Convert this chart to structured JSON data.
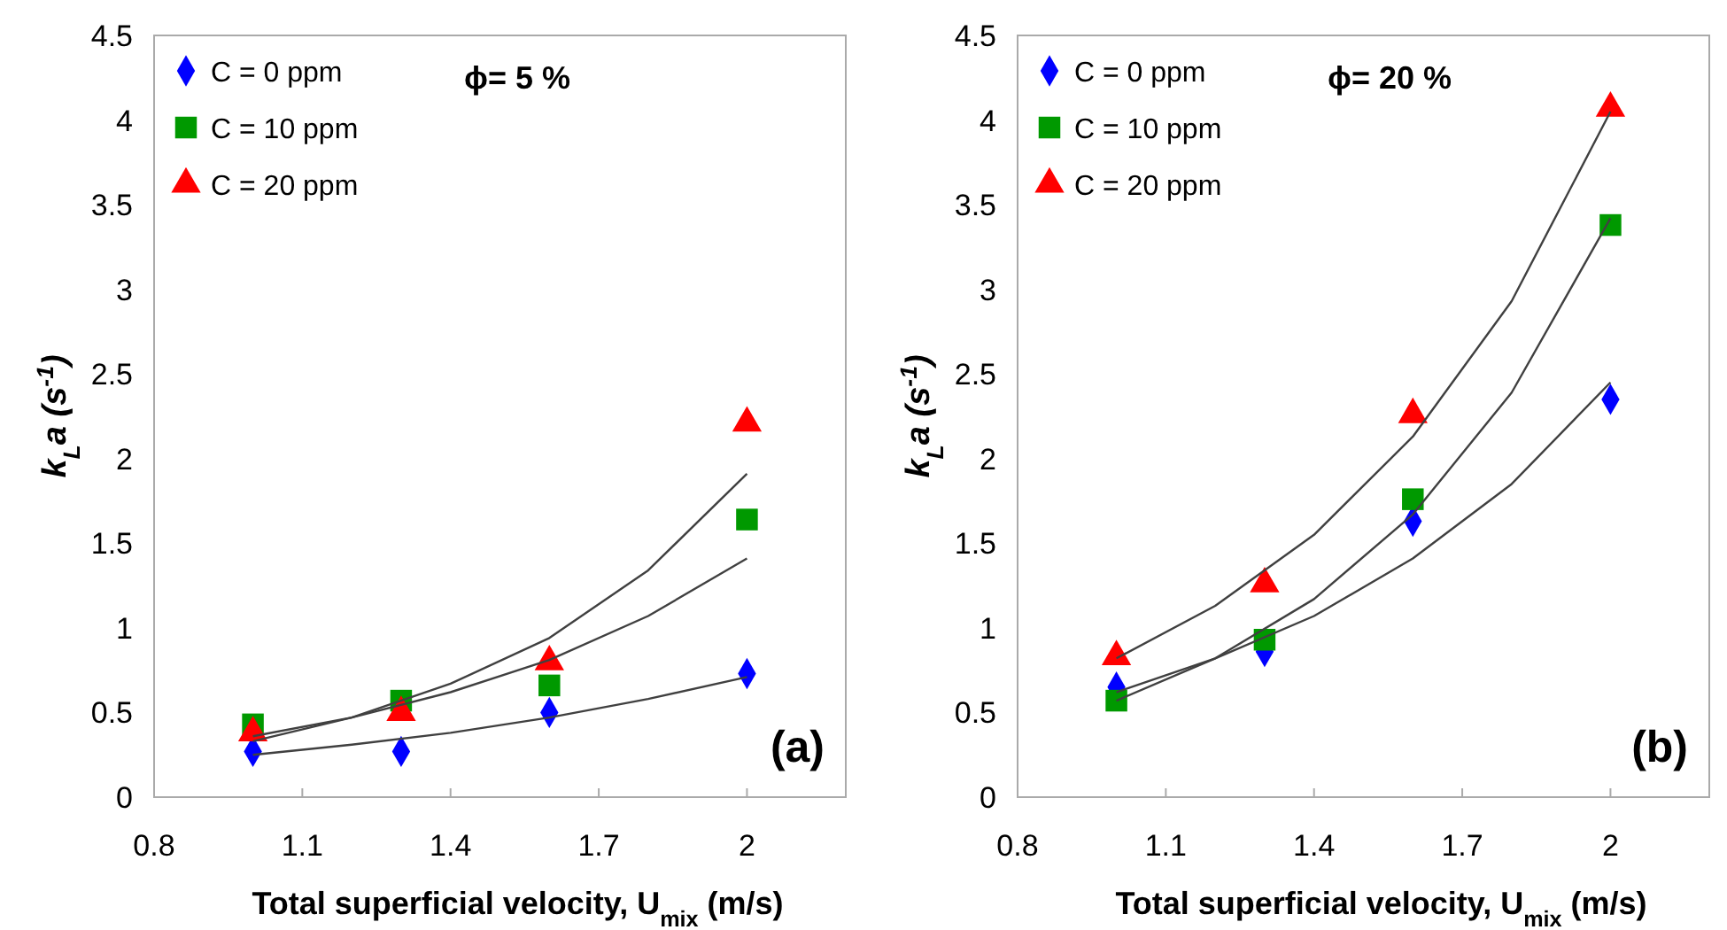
{
  "chart_data": [
    {
      "type": "scatter",
      "xlabel": "Total superficial velocity, U$_{mix}$ (m/s)",
      "ylabel": "k$_{L}$a (s$^{-1}$)",
      "annotations": [
        "ϕ= 5 %",
        "(a)"
      ],
      "xlim": [
        0.8,
        2.2
      ],
      "xticks": [
        0.8,
        1.1,
        1.4,
        1.7,
        2
      ],
      "ylim": [
        0,
        4.5
      ],
      "yticks": [
        0,
        0.5,
        1,
        1.5,
        2,
        2.5,
        3,
        3.5,
        4,
        4.5
      ],
      "grid": false,
      "legend": "top left",
      "x": [
        1,
        1.3,
        1.6,
        2
      ],
      "series": [
        {
          "name": "C = 0 ppm",
          "color": "#0000ff",
          "marker": "diamond",
          "values": [
            0.27,
            0.27,
            0.5,
            0.73
          ]
        },
        {
          "name": "C = 10 ppm",
          "color": "#009900",
          "marker": "square",
          "values": [
            0.43,
            0.57,
            0.66,
            1.64
          ]
        },
        {
          "name": "C = 20 ppm",
          "color": "#ff0000",
          "marker": "triangle",
          "values": [
            0.38,
            0.5,
            0.8,
            2.21
          ]
        },
        {
          "type": "line",
          "color": "#404040",
          "marker": "none",
          "x": [
            1,
            1.2,
            1.4,
            1.6,
            1.8,
            2
          ],
          "values": [
            0.25,
            0.31,
            0.38,
            0.47,
            0.58,
            0.71
          ]
        },
        {
          "type": "line",
          "color": "#404040",
          "marker": "none",
          "x": [
            1,
            1.2,
            1.4,
            1.6,
            1.8,
            2
          ],
          "values": [
            0.36,
            0.47,
            0.62,
            0.81,
            1.07,
            1.41
          ]
        },
        {
          "type": "line",
          "color": "#404040",
          "marker": "none",
          "x": [
            1,
            1.2,
            1.4,
            1.6,
            1.8,
            2
          ],
          "values": [
            0.33,
            0.47,
            0.67,
            0.94,
            1.34,
            1.91
          ]
        }
      ]
    },
    {
      "type": "scatter",
      "xlabel": "Total superficial velocity, U$_{mix}$ (m/s)",
      "ylabel": "k$_{L}$a (s$^{-1}$)",
      "annotations": [
        "ϕ= 20 %",
        "(b)"
      ],
      "xlim": [
        0.8,
        2.2
      ],
      "xticks": [
        0.8,
        1.1,
        1.4,
        1.7,
        2
      ],
      "ylim": [
        0,
        4.5
      ],
      "yticks": [
        0,
        0.5,
        1,
        1.5,
        2,
        2.5,
        3,
        3.5,
        4,
        4.5
      ],
      "grid": false,
      "legend": "top left",
      "x": [
        1,
        1.3,
        1.6,
        2
      ],
      "series": [
        {
          "name": "C = 0 ppm",
          "color": "#0000ff",
          "marker": "diamond",
          "values": [
            0.65,
            0.86,
            1.63,
            2.35
          ]
        },
        {
          "name": "C = 10 ppm",
          "color": "#009900",
          "marker": "square",
          "values": [
            0.57,
            0.93,
            1.76,
            3.38
          ]
        },
        {
          "name": "C = 20 ppm",
          "color": "#ff0000",
          "marker": "triangle",
          "values": [
            0.83,
            1.26,
            2.26,
            4.07
          ]
        },
        {
          "type": "line",
          "color": "#404040",
          "marker": "none",
          "x": [
            1,
            1.2,
            1.4,
            1.6,
            1.8,
            2
          ],
          "values": [
            0.62,
            0.82,
            1.07,
            1.41,
            1.85,
            2.45
          ]
        },
        {
          "type": "line",
          "color": "#404040",
          "marker": "none",
          "x": [
            1,
            1.2,
            1.4,
            1.6,
            1.8,
            2
          ],
          "values": [
            0.57,
            0.82,
            1.17,
            1.67,
            2.39,
            3.42
          ]
        },
        {
          "type": "line",
          "color": "#404040",
          "marker": "none",
          "x": [
            1,
            1.2,
            1.4,
            1.6,
            1.8,
            2
          ],
          "values": [
            0.82,
            1.13,
            1.55,
            2.13,
            2.93,
            4.05
          ]
        }
      ]
    }
  ]
}
